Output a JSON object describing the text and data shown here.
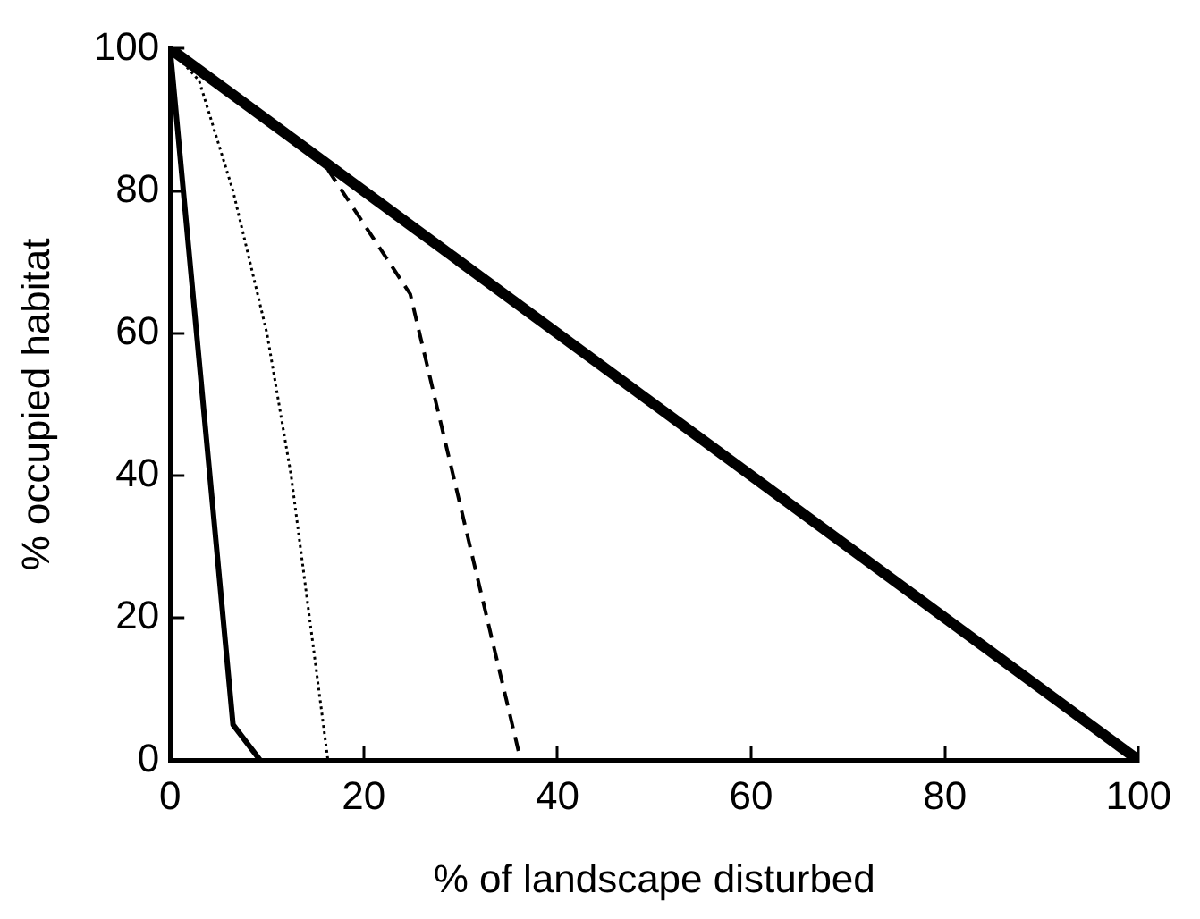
{
  "chart_data": {
    "type": "line",
    "xlabel": "% of landscape disturbed",
    "ylabel": "% occupied habitat",
    "xlim": [
      0,
      100
    ],
    "ylim": [
      0,
      100
    ],
    "xticks": [
      0,
      20,
      40,
      60,
      80,
      100
    ],
    "yticks": [
      0,
      20,
      40,
      60,
      80,
      100
    ],
    "grid": false,
    "legend": false,
    "marker": "none",
    "series": [
      {
        "color": "#000000",
        "line_style": "solid",
        "x": [
          0,
          100
        ],
        "values": [
          100,
          0
        ]
      },
      {
        "color": "#000000",
        "line_style": "solid",
        "x": [
          0,
          6.5,
          9.3
        ],
        "values": [
          100,
          5,
          0
        ]
      },
      {
        "color": "#000000",
        "line_style": "dotted",
        "x": [
          0,
          3,
          6.5,
          10,
          12.5,
          14.4,
          16.3
        ],
        "values": [
          100,
          95.5,
          80,
          60,
          40,
          20,
          0
        ]
      },
      {
        "color": "#000000",
        "line_style": "dashed",
        "x": [
          16.3,
          24.8,
          36.2
        ],
        "values": [
          83,
          65.5,
          0
        ]
      }
    ]
  }
}
